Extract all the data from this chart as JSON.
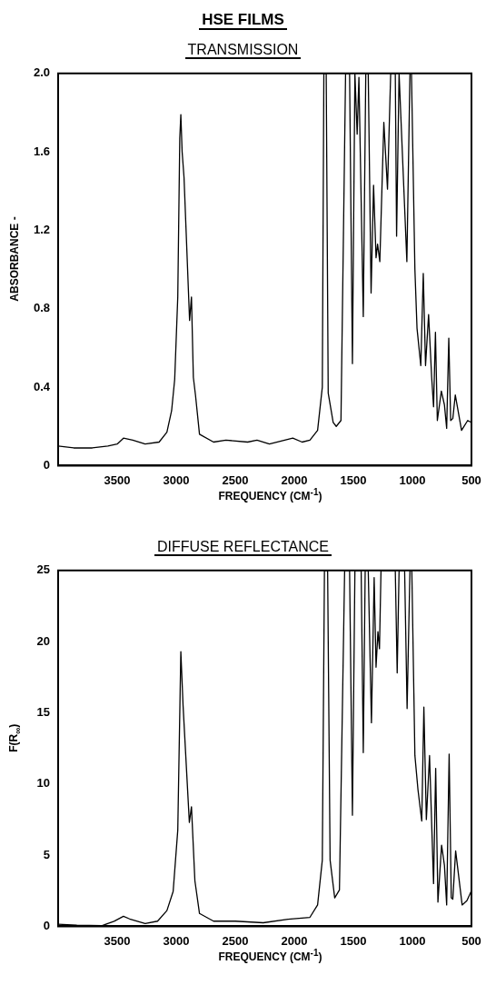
{
  "chart_data": [
    {
      "type": "line",
      "title": "HSE FILMS",
      "subtitle": "TRANSMISSION",
      "xlabel": "FREQUENCY (CM$^{-1}$)",
      "ylabel": "ABSORBANCE -",
      "color": "#000000",
      "marker": "none",
      "grid": false,
      "x": [
        4000,
        3868,
        3711,
        3579,
        3500,
        3447,
        3368,
        3263,
        3145,
        3079,
        3039,
        3013,
        2987,
        2970,
        2961,
        2950,
        2934,
        2887,
        2871,
        2855,
        2837,
        2803,
        2684,
        2579,
        2395,
        2316,
        2211,
        2013,
        1934,
        1868,
        1803,
        1763,
        1750,
        1730,
        1713,
        1671,
        1645,
        1605,
        1566,
        1532,
        1508,
        1487,
        1468,
        1453,
        1416,
        1395,
        1374,
        1350,
        1329,
        1308,
        1295,
        1276,
        1242,
        1211,
        1184,
        1145,
        1134,
        1113,
        1047,
        1021,
        1008,
        979,
        961,
        929,
        908,
        889,
        863,
        837,
        821,
        805,
        789,
        755,
        729,
        710,
        692,
        676,
        658,
        637,
        584,
        532,
        500
      ],
      "values": [
        0.1,
        0.09,
        0.09,
        0.1,
        0.11,
        0.14,
        0.13,
        0.11,
        0.12,
        0.17,
        0.28,
        0.44,
        0.86,
        1.67,
        1.79,
        1.6,
        1.47,
        0.74,
        0.86,
        0.45,
        0.36,
        0.16,
        0.12,
        0.13,
        0.12,
        0.13,
        0.11,
        0.14,
        0.12,
        0.13,
        0.18,
        0.4,
        2.0,
        2.0,
        0.37,
        0.22,
        0.2,
        0.23,
        2.0,
        2.0,
        0.52,
        2.0,
        1.69,
        1.98,
        0.76,
        2.0,
        2.0,
        0.88,
        1.43,
        1.06,
        1.13,
        1.04,
        1.75,
        1.41,
        2.0,
        2.0,
        1.17,
        2.0,
        1.04,
        2.0,
        2.0,
        1.0,
        0.7,
        0.51,
        0.98,
        0.51,
        0.77,
        0.45,
        0.3,
        0.68,
        0.23,
        0.38,
        0.31,
        0.19,
        0.65,
        0.23,
        0.24,
        0.36,
        0.18,
        0.23,
        0.22
      ],
      "xlim": [
        4000,
        500
      ],
      "xticks": [
        3500,
        3000,
        2500,
        2000,
        1500,
        1000,
        500
      ],
      "ylim": [
        0,
        2
      ],
      "yticks": [
        0,
        0.4,
        0.8,
        1.2,
        1.6,
        {
          "value": 2,
          "label": "2.0"
        }
      ]
    },
    {
      "type": "line",
      "title": "DIFFUSE REFLECTANCE",
      "xlabel": "FREQUENCY (CM$^{-1}$)",
      "ylabel": "F(R$_{∞}$)",
      "color": "#000000",
      "marker": "none",
      "grid": false,
      "x": [
        4000,
        3842,
        3632,
        3526,
        3447,
        3395,
        3263,
        3158,
        3079,
        3026,
        2987,
        2961,
        2942,
        2889,
        2871,
        2842,
        2803,
        2684,
        2500,
        2263,
        2053,
        1868,
        1803,
        1763,
        1745,
        1718,
        1697,
        1658,
        1618,
        1574,
        1532,
        1508,
        1487,
        1434,
        1416,
        1400,
        1374,
        1347,
        1324,
        1308,
        1292,
        1279,
        1266,
        1145,
        1129,
        1113,
        1066,
        1045,
        1021,
        1005,
        979,
        953,
        921,
        903,
        882,
        855,
        821,
        803,
        784,
        753,
        729,
        710,
        689,
        671,
        658,
        634,
        579,
        539,
        500
      ],
      "values": [
        0.15,
        0.08,
        0.04,
        0.35,
        0.7,
        0.52,
        0.2,
        0.36,
        1.1,
        2.45,
        6.75,
        19.3,
        15.5,
        7.3,
        8.4,
        3.2,
        0.9,
        0.36,
        0.36,
        0.25,
        0.5,
        0.63,
        1.5,
        4.65,
        25,
        25,
        4.65,
        2.0,
        2.55,
        25,
        25,
        7.8,
        25,
        25,
        12.2,
        25,
        25,
        14.3,
        24.5,
        18.2,
        20.7,
        19.5,
        25,
        25,
        17.8,
        25,
        25,
        15.3,
        25,
        25,
        12.0,
        9.6,
        7.4,
        15.4,
        7.5,
        12.0,
        3.0,
        11.1,
        1.7,
        5.7,
        4.3,
        1.5,
        12.1,
        2.0,
        1.9,
        5.3,
        1.5,
        1.8,
        2.5
      ],
      "xlim": [
        4000,
        500
      ],
      "xticks": [
        3500,
        3000,
        2500,
        2000,
        1500,
        1000,
        500
      ],
      "ylim": [
        0,
        25
      ],
      "yticks": [
        0,
        5,
        10,
        15,
        20,
        25
      ]
    }
  ]
}
